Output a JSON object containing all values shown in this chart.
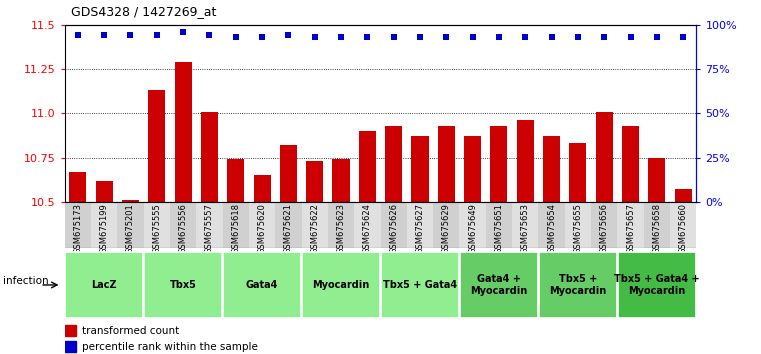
{
  "title": "GDS4328 / 1427269_at",
  "samples": [
    "GSM675173",
    "GSM675199",
    "GSM675201",
    "GSM675555",
    "GSM675556",
    "GSM675557",
    "GSM675618",
    "GSM675620",
    "GSM675621",
    "GSM675622",
    "GSM675623",
    "GSM675624",
    "GSM675626",
    "GSM675627",
    "GSM675629",
    "GSM675649",
    "GSM675651",
    "GSM675653",
    "GSM675654",
    "GSM675655",
    "GSM675656",
    "GSM675657",
    "GSM675658",
    "GSM675660"
  ],
  "bar_values": [
    10.67,
    10.62,
    10.51,
    11.13,
    11.29,
    11.01,
    10.74,
    10.65,
    10.82,
    10.73,
    10.74,
    10.9,
    10.93,
    10.87,
    10.93,
    10.87,
    10.93,
    10.96,
    10.87,
    10.83,
    11.01,
    10.93,
    10.75,
    10.57
  ],
  "percentile_y_data": [
    11.44,
    11.44,
    11.44,
    11.44,
    11.46,
    11.44,
    11.43,
    11.43,
    11.44,
    11.43,
    11.43,
    11.43,
    11.43,
    11.43,
    11.43,
    11.43,
    11.43,
    11.43,
    11.43,
    11.43,
    11.43,
    11.43,
    11.43,
    11.43
  ],
  "bar_color": "#cc0000",
  "dot_color": "#0000cc",
  "ylim": [
    10.5,
    11.5
  ],
  "yticks": [
    10.5,
    10.75,
    11.0,
    11.25,
    11.5
  ],
  "right_yticks": [
    0,
    25,
    50,
    75,
    100
  ],
  "right_ylabels": [
    "0%",
    "25%",
    "50%",
    "75%",
    "100%"
  ],
  "groups": [
    {
      "label": "LacZ",
      "start": 0,
      "end": 3,
      "color": "#90EE90"
    },
    {
      "label": "Tbx5",
      "start": 3,
      "end": 6,
      "color": "#90EE90"
    },
    {
      "label": "Gata4",
      "start": 6,
      "end": 9,
      "color": "#90EE90"
    },
    {
      "label": "Myocardin",
      "start": 9,
      "end": 12,
      "color": "#90EE90"
    },
    {
      "label": "Tbx5 + Gata4",
      "start": 12,
      "end": 15,
      "color": "#90EE90"
    },
    {
      "label": "Gata4 +\nMyocardin",
      "start": 15,
      "end": 18,
      "color": "#66cc66"
    },
    {
      "label": "Tbx5 +\nMyocardin",
      "start": 18,
      "end": 21,
      "color": "#66cc66"
    },
    {
      "label": "Tbx5 + Gata4 +\nMyocardin",
      "start": 21,
      "end": 24,
      "color": "#44bb44"
    }
  ],
  "tick_bg_even": "#d0d0d0",
  "tick_bg_odd": "#e0e0e0",
  "infection_label": "infection",
  "legend_items": [
    {
      "color": "#cc0000",
      "label": "transformed count"
    },
    {
      "color": "#0000cc",
      "label": "percentile rank within the sample"
    }
  ]
}
